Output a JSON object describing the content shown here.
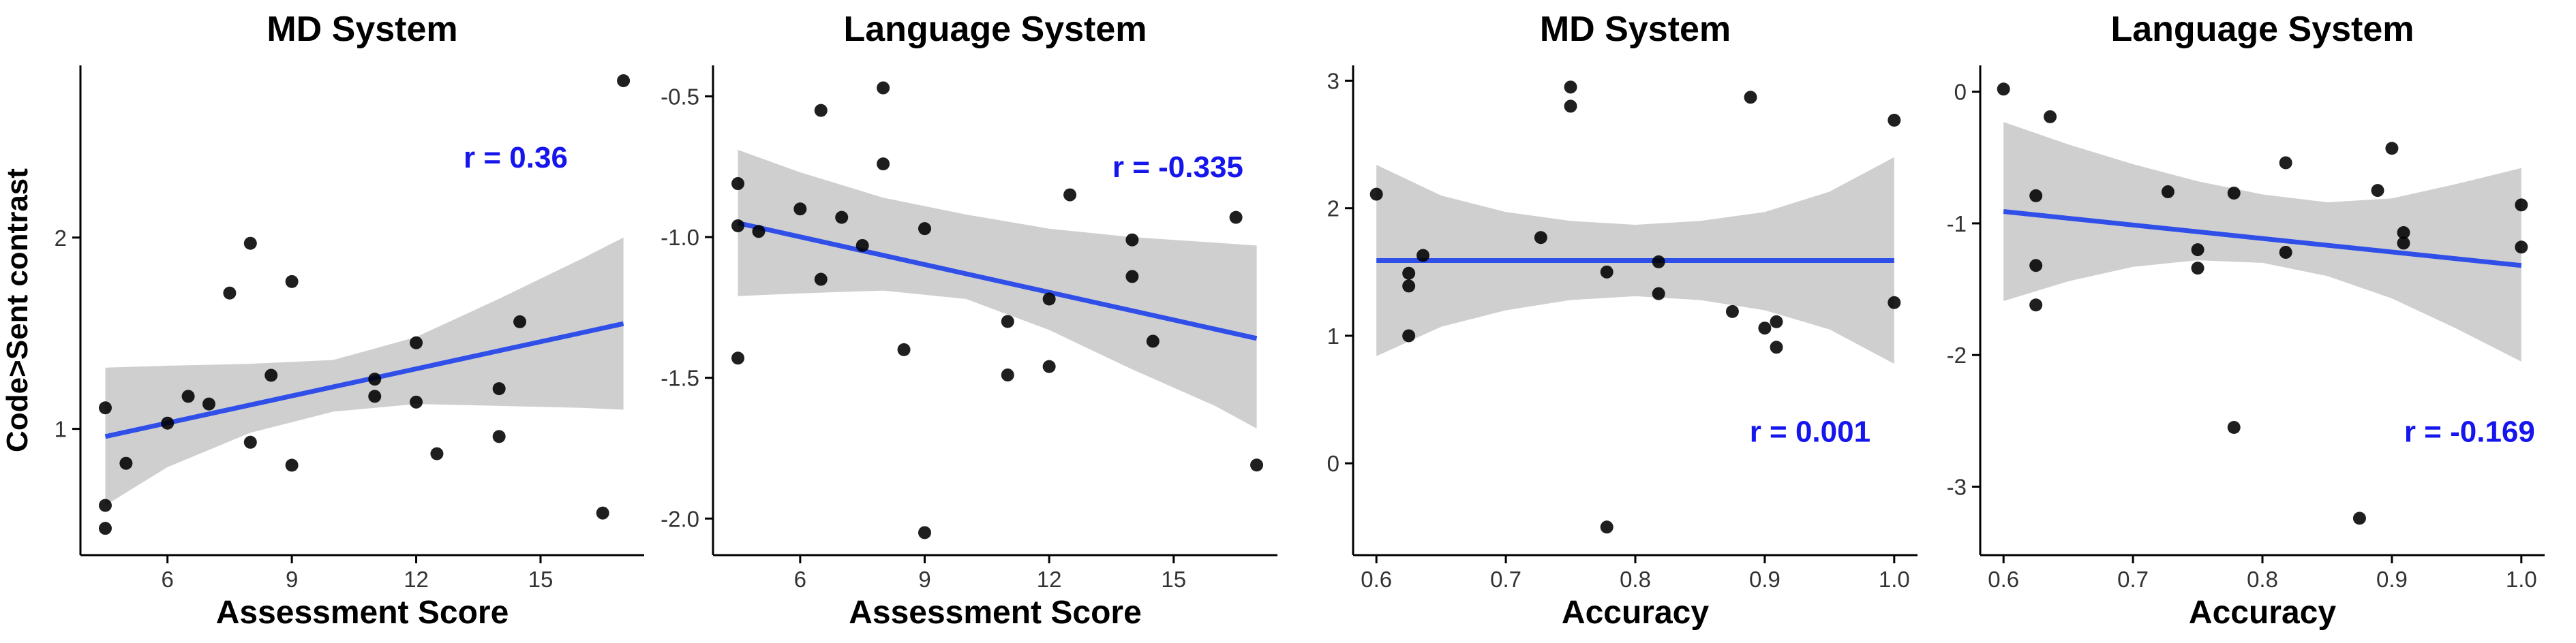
{
  "colors": {
    "fit_line": "#2f4fe8",
    "band": "#cfcfcf",
    "points": "#000000",
    "r_label": "#1515ee",
    "axis": "#000000"
  },
  "chart_data": [
    {
      "type": "scatter",
      "title": "MD System",
      "xlabel": "Assessment Score",
      "ylabel": "Code>Sent contrast",
      "xlim": [
        3.9,
        17.5
      ],
      "ylim": [
        0.34,
        2.9
      ],
      "xticks": [
        6,
        9,
        12,
        15
      ],
      "xtick_labels": [
        "6",
        "9",
        "12",
        "15"
      ],
      "yticks": [
        1,
        2
      ],
      "ytick_labels": [
        "1",
        "2"
      ],
      "r_label": "r =  0.36",
      "r_pos": [
        14.4,
        2.42
      ],
      "grid": false,
      "x": [
        4.5,
        4.5,
        4.5,
        5.0,
        6.0,
        6.5,
        7.0,
        7.5,
        8.0,
        8.0,
        8.5,
        9.0,
        9.0,
        11.0,
        11.0,
        12.0,
        12.0,
        12.5,
        14.0,
        14.0,
        14.5,
        16.5,
        17.0
      ],
      "y": [
        1.11,
        0.6,
        0.48,
        0.82,
        1.03,
        1.17,
        1.13,
        1.71,
        1.97,
        0.93,
        1.28,
        1.77,
        0.81,
        1.26,
        1.17,
        1.45,
        1.14,
        0.87,
        1.21,
        0.96,
        1.56,
        0.56,
        2.82
      ],
      "fit": {
        "x": [
          4.5,
          17.0
        ],
        "y": [
          0.96,
          1.55
        ]
      },
      "band": {
        "x": [
          4.5,
          6,
          8,
          10,
          12,
          14,
          16,
          17
        ],
        "lower": [
          0.6,
          0.8,
          0.98,
          1.09,
          1.13,
          1.12,
          1.11,
          1.1
        ],
        "upper": [
          1.32,
          1.33,
          1.34,
          1.36,
          1.48,
          1.68,
          1.89,
          2.0
        ]
      }
    },
    {
      "type": "scatter",
      "title": "Language System",
      "xlabel": "Assessment Score",
      "ylabel": "",
      "xlim": [
        3.9,
        17.5
      ],
      "ylim": [
        -2.13,
        -0.39
      ],
      "xticks": [
        6,
        9,
        12,
        15
      ],
      "xtick_labels": [
        "6",
        "9",
        "12",
        "15"
      ],
      "yticks": [
        -0.5,
        -1.0,
        -1.5,
        -2.0
      ],
      "ytick_labels": [
        "-0.5",
        "-1.0",
        "-1.5",
        "-2.0"
      ],
      "r_label": "r =  -0.335",
      "r_pos": [
        15.1,
        -0.75
      ],
      "grid": false,
      "x": [
        4.5,
        4.5,
        4.5,
        5.0,
        6.0,
        6.5,
        6.5,
        7.0,
        7.5,
        8.0,
        8.0,
        8.5,
        9.0,
        9.0,
        11.0,
        11.0,
        12.0,
        12.0,
        12.5,
        14.0,
        14.0,
        14.5,
        16.5,
        17.0
      ],
      "y": [
        -0.81,
        -0.96,
        -1.43,
        -0.98,
        -0.9,
        -0.55,
        -1.15,
        -0.93,
        -1.03,
        -0.47,
        -0.74,
        -1.4,
        -0.97,
        -2.05,
        -1.3,
        -1.49,
        -1.22,
        -1.46,
        -0.85,
        -1.01,
        -1.14,
        -1.37,
        -0.93,
        -1.81
      ],
      "fit": {
        "x": [
          4.5,
          17.0
        ],
        "y": [
          -0.95,
          -1.36
        ]
      },
      "band": {
        "x": [
          4.5,
          6,
          8,
          10,
          12,
          14,
          16,
          17
        ],
        "lower": [
          -1.21,
          -1.2,
          -1.19,
          -1.22,
          -1.33,
          -1.47,
          -1.6,
          -1.68
        ],
        "upper": [
          -0.69,
          -0.77,
          -0.86,
          -0.92,
          -0.97,
          -1.0,
          -1.02,
          -1.03
        ]
      }
    },
    {
      "type": "scatter",
      "title": "MD System",
      "xlabel": "Accuracy",
      "ylabel": "",
      "xlim": [
        0.582,
        1.018
      ],
      "ylim": [
        -0.72,
        3.12
      ],
      "xticks": [
        0.6,
        0.7,
        0.8,
        0.9,
        1.0
      ],
      "xtick_labels": [
        "0.6",
        "0.7",
        "0.8",
        "0.9",
        "1.0"
      ],
      "yticks": [
        0,
        1,
        2,
        3
      ],
      "ytick_labels": [
        "0",
        "1",
        "2",
        "3"
      ],
      "r_label": "r =  0.001",
      "r_pos": [
        0.935,
        0.25
      ],
      "grid": false,
      "x": [
        0.6,
        0.625,
        0.625,
        0.625,
        0.636,
        0.727,
        0.75,
        0.75,
        0.778,
        0.778,
        0.818,
        0.818,
        0.875,
        0.889,
        0.9,
        0.909,
        0.909,
        1.0,
        1.0
      ],
      "y": [
        2.11,
        1.49,
        1.39,
        1.0,
        1.63,
        1.77,
        2.95,
        2.8,
        1.5,
        -0.5,
        1.58,
        1.33,
        1.19,
        2.87,
        1.06,
        1.11,
        0.91,
        2.69,
        1.26
      ],
      "fit": {
        "x": [
          0.6,
          1.0
        ],
        "y": [
          1.59,
          1.59
        ]
      },
      "band": {
        "x": [
          0.6,
          0.65,
          0.7,
          0.75,
          0.8,
          0.85,
          0.9,
          0.95,
          1.0
        ],
        "lower": [
          0.84,
          1.07,
          1.2,
          1.28,
          1.31,
          1.28,
          1.2,
          1.05,
          0.78
        ],
        "upper": [
          2.34,
          2.1,
          1.97,
          1.9,
          1.87,
          1.9,
          1.97,
          2.13,
          2.4
        ]
      }
    },
    {
      "type": "scatter",
      "title": "Language System",
      "xlabel": "Accuracy",
      "ylabel": "",
      "xlim": [
        0.582,
        1.018
      ],
      "ylim": [
        -3.52,
        0.2
      ],
      "xticks": [
        0.6,
        0.7,
        0.8,
        0.9,
        1.0
      ],
      "xtick_labels": [
        "0.6",
        "0.7",
        "0.8",
        "0.9",
        "1.0"
      ],
      "yticks": [
        0,
        -1,
        -2,
        -3
      ],
      "ytick_labels": [
        "0",
        "-1",
        "-2",
        "-3"
      ],
      "r_label": "r =  -0.169",
      "r_pos": [
        0.96,
        -2.58
      ],
      "grid": false,
      "x": [
        0.6,
        0.625,
        0.625,
        0.625,
        0.636,
        0.727,
        0.75,
        0.75,
        0.778,
        0.778,
        0.818,
        0.818,
        0.875,
        0.889,
        0.9,
        0.909,
        0.909,
        1.0,
        1.0
      ],
      "y": [
        0.02,
        -0.79,
        -1.32,
        -1.62,
        -0.19,
        -0.76,
        -1.2,
        -1.34,
        -0.77,
        -2.55,
        -0.54,
        -1.22,
        -3.24,
        -0.75,
        -0.43,
        -1.07,
        -1.15,
        -0.86,
        -1.18
      ],
      "fit": {
        "x": [
          0.6,
          1.0
        ],
        "y": [
          -0.91,
          -1.32
        ]
      },
      "band": {
        "x": [
          0.6,
          0.65,
          0.7,
          0.75,
          0.8,
          0.85,
          0.9,
          0.95,
          1.0
        ],
        "lower": [
          -1.59,
          -1.44,
          -1.33,
          -1.28,
          -1.3,
          -1.4,
          -1.57,
          -1.8,
          -2.05
        ],
        "upper": [
          -0.23,
          -0.4,
          -0.55,
          -0.68,
          -0.78,
          -0.84,
          -0.81,
          -0.7,
          -0.58
        ]
      }
    }
  ]
}
